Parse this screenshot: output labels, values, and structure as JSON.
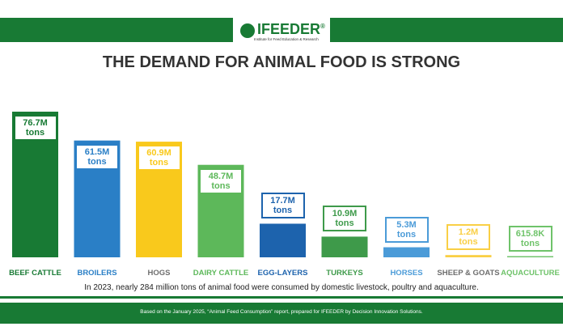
{
  "logo": {
    "name": "IFEEDER",
    "mark": "®",
    "tagline": "Institute for Feed Education & Research"
  },
  "chart_data": {
    "type": "bar",
    "title": "THE DEMAND FOR ANIMAL FOOD IS STRONG",
    "categories": [
      "BEEF CATTLE",
      "BROILERS",
      "HOGS",
      "DAIRY CATTLE",
      "EGG-LAYERS",
      "TURKEYS",
      "HORSES",
      "SHEEP & GOATS",
      "AQUACULTURE"
    ],
    "values": [
      76.7,
      61.5,
      60.9,
      48.7,
      17.7,
      10.9,
      5.3,
      1.2,
      0.6158
    ],
    "value_labels": [
      "76.7M tons",
      "61.5M tons",
      "60.9M tons",
      "48.7M tons",
      "17.7M tons",
      "10.9M tons",
      "5.3M tons",
      "1.2M tons",
      "615.8K tons"
    ],
    "colors": [
      "#187a34",
      "#2a7fc6",
      "#f9c91c",
      "#5db85a",
      "#1d63ad",
      "#3e9a4a",
      "#4b9bd8",
      "#f9cf45",
      "#6fc36a"
    ],
    "label_colors": [
      "#187a34",
      "#2a7fc6",
      "#6e6e6e",
      "#5db85a",
      "#1d63ad",
      "#3e9a4a",
      "#4b9bd8",
      "#6e6e6e",
      "#6fc36a"
    ],
    "note": "In 2023, nearly 284 million tons of animal food were consumed by domestic livestock, poultry and aquaculture."
  },
  "footer": "Based on the January 2025, “Animal Feed Consumption” report, prepared for IFEEDER by Decision Innovation Solutions."
}
